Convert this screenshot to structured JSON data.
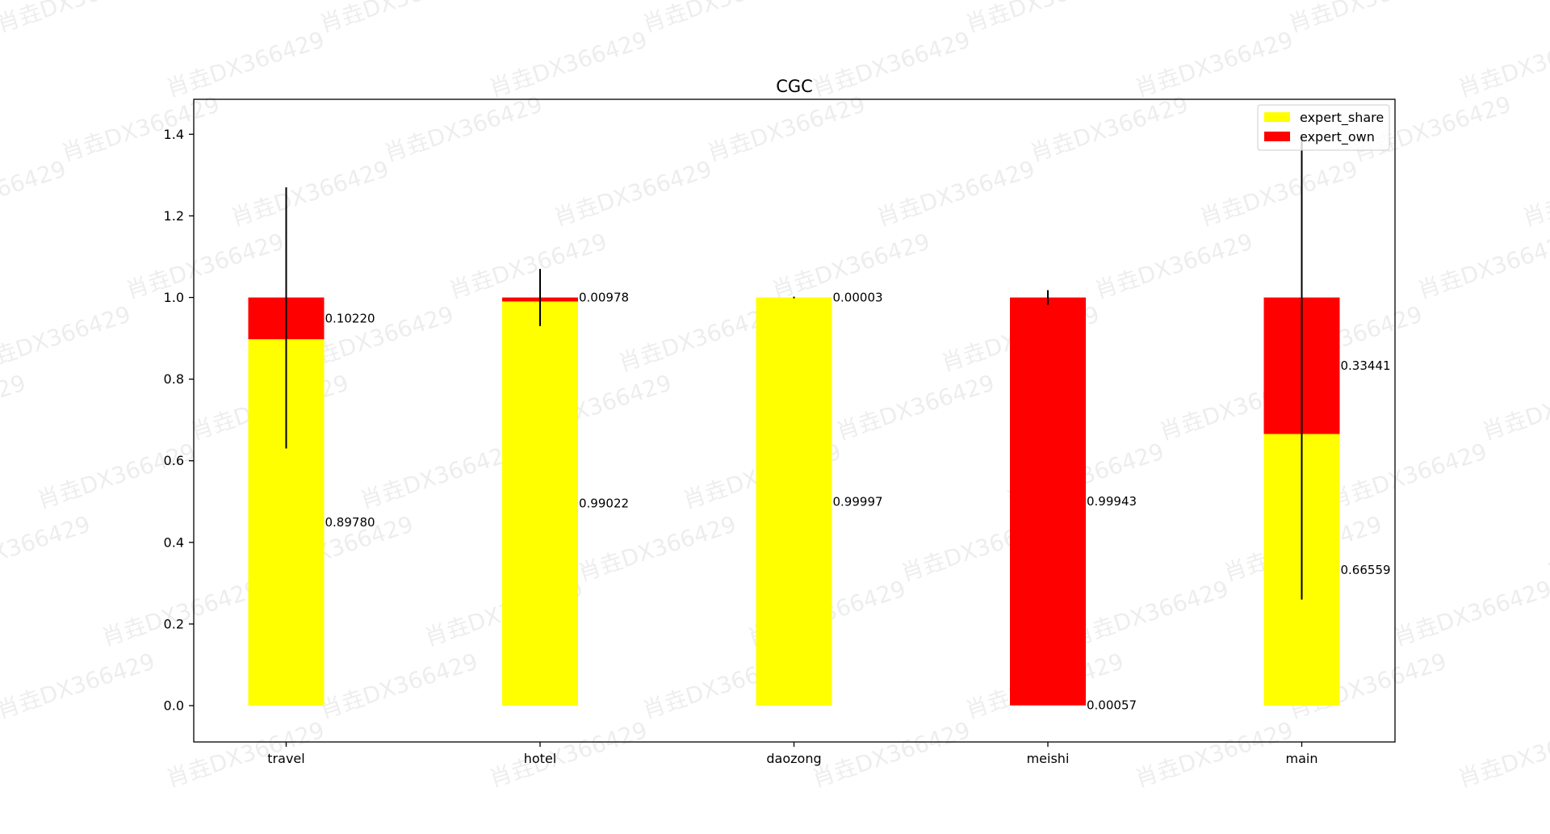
{
  "chart_data": {
    "type": "bar",
    "stacked": true,
    "title": "CGC",
    "xlabel": "",
    "ylabel": "",
    "categories": [
      "travel",
      "hotel",
      "daozong",
      "meishi",
      "main"
    ],
    "series": [
      {
        "name": "expert_share",
        "color": "#ffff00",
        "values": [
          0.8978,
          0.99022,
          0.99997,
          0.00057,
          0.66559
        ],
        "labels": [
          "0.89780",
          "0.99022",
          "0.99997",
          "0.00057",
          "0.66559"
        ]
      },
      {
        "name": "expert_own",
        "color": "#ff0000",
        "values": [
          0.1022,
          0.00978,
          3e-05,
          0.99943,
          0.33441
        ],
        "labels": [
          "0.10220",
          "0.00978",
          "0.00003",
          "0.99943",
          "0.33441"
        ]
      }
    ],
    "error_bars": {
      "center": [
        0.95,
        1.0,
        1.0,
        1.0,
        0.83
      ],
      "low": [
        0.63,
        0.93,
        0.998,
        0.982,
        0.26
      ],
      "high": [
        1.27,
        1.07,
        1.002,
        1.018,
        1.4
      ],
      "color": "#000000"
    },
    "ylim": [
      -0.09,
      1.48
    ],
    "yticks": [
      "0.0",
      "0.2",
      "0.4",
      "0.6",
      "0.8",
      "1.0",
      "1.2",
      "1.4"
    ],
    "ytick_values": [
      0,
      0.2,
      0.4,
      0.6,
      0.8,
      1.0,
      1.2,
      1.4
    ],
    "legend_position": "top-right",
    "grid": false
  },
  "watermark_text": "肖垚DX366429"
}
